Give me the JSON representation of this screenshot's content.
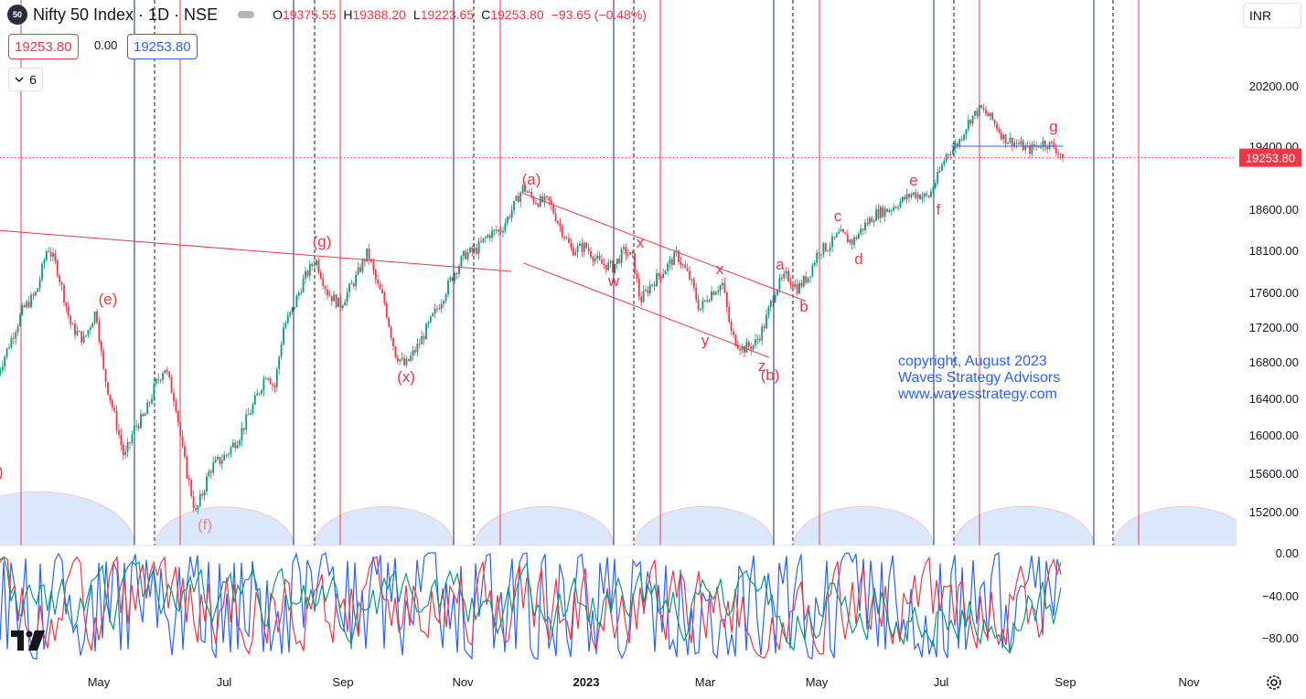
{
  "header": {
    "logo_text": "50",
    "symbol_title": "Nifty 50 Index · 1D · NSE",
    "ohlc": [
      {
        "k": "O",
        "v": "19375.55"
      },
      {
        "k": "H",
        "v": "19388.20"
      },
      {
        "k": "L",
        "v": "19223.65"
      },
      {
        "k": "C",
        "v": "19253.80"
      },
      {
        "k": "",
        "v": "−93.65 (−0.48%)"
      }
    ],
    "bid": "19253.80",
    "spread": "0.00",
    "ask": "19253.80",
    "indicators_count": "6"
  },
  "currency": "INR",
  "colors": {
    "up": "#089981",
    "down": "#f23645",
    "blue_line": "#1a237e",
    "red_line": "#f23645",
    "cycle_fill": "#dbe8fb",
    "copyright": "#2962ff"
  },
  "chart_data": {
    "type": "candlestick",
    "price_axis": {
      "ticks": [
        "20200.00",
        "19400.00",
        "18600.00",
        "18100.00",
        "17600.00",
        "17200.00",
        "16800.00",
        "16400.00",
        "16000.00",
        "15600.00",
        "15200.00"
      ],
      "last_price_label": "19253.80",
      "ylim": [
        14800,
        20500
      ]
    },
    "time_axis": {
      "ticks": [
        "May",
        "Jul",
        "Sep",
        "Nov",
        "2023",
        "Mar",
        "May",
        "Jul",
        "Sep",
        "Nov"
      ]
    },
    "wave_labels": [
      "d)",
      "(e)",
      "(f)",
      "(g)",
      "(x)",
      "(a)",
      "w",
      "x",
      "x",
      "y",
      "z",
      "(b)",
      "a",
      "b",
      "c",
      "d",
      "e",
      "f",
      "g"
    ],
    "trendlines": [
      {
        "from": [
          "2022-03-01",
          18350
        ],
        "to": [
          "2022-11-25",
          17850
        ]
      },
      {
        "from": [
          "2022-12-01",
          18800
        ],
        "to": [
          "2023-04-25",
          17500
        ]
      },
      {
        "from": [
          "2022-12-01",
          17950
        ],
        "to": [
          "2023-04-05",
          16850
        ]
      },
      {
        "from": [
          "2023-07-06",
          19400
        ],
        "to": [
          "2023-08-31",
          19400
        ]
      }
    ],
    "key_points": [
      {
        "label": "(f)",
        "date": "2022-06-17",
        "price": 15180
      },
      {
        "label": "(g)",
        "date": "2022-08-19",
        "price": 18000
      },
      {
        "label": "(x)",
        "date": "2022-09-30",
        "price": 16750
      },
      {
        "label": "(a)",
        "date": "2022-12-01",
        "price": 18880
      },
      {
        "label": "(b)",
        "date": "2023-03-28",
        "price": 16850
      },
      {
        "label": "g",
        "date": "2023-08-31",
        "price": 19253.8
      }
    ],
    "oscillator": {
      "ticks": [
        "0.00",
        "−40.00",
        "−80.00"
      ],
      "ylim": [
        -100,
        0
      ],
      "series_colors": [
        "#2962ff",
        "#f23645",
        "#089981"
      ]
    },
    "copyright": [
      "copyright, August 2023",
      "Waves Strategy Advisors",
      "www.wavesstrategy.com"
    ]
  }
}
